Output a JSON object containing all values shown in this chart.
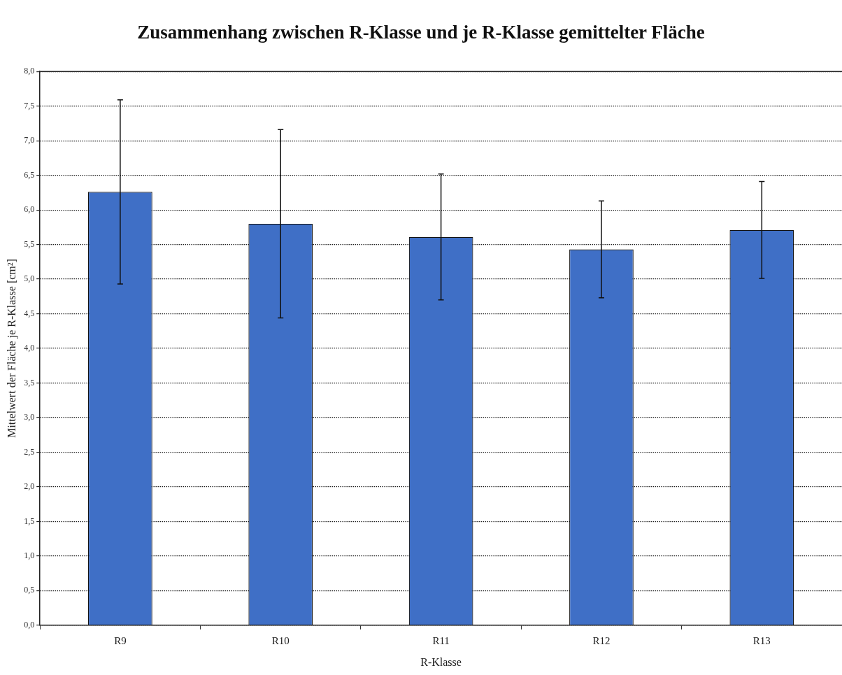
{
  "chart_data": {
    "type": "bar",
    "title": "Zusammenhang zwischen R-Klasse und je R-Klasse gemittelter Fläche",
    "xlabel": "R-Klasse",
    "ylabel": "Mittelwert der Fläche je R-Klasse [cm²]",
    "categories": [
      "R9",
      "R10",
      "R11",
      "R12",
      "R13"
    ],
    "values": [
      6.26,
      5.8,
      5.61,
      5.43,
      5.71
    ],
    "errors": [
      1.33,
      1.36,
      0.91,
      0.7,
      0.7
    ],
    "color": "#3f6fc6",
    "ylim": [
      0,
      8
    ],
    "yticks": [
      {
        "value": 0,
        "label": "0,0"
      },
      {
        "value": 0.5,
        "label": "0,5"
      },
      {
        "value": 1,
        "label": "1,0"
      },
      {
        "value": 1.5,
        "label": "1,5"
      },
      {
        "value": 2,
        "label": "2,0"
      },
      {
        "value": 2.5,
        "label": "2,5"
      },
      {
        "value": 3,
        "label": "3,0"
      },
      {
        "value": 3.5,
        "label": "3,5"
      },
      {
        "value": 4,
        "label": "4,0"
      },
      {
        "value": 4.5,
        "label": "4,5"
      },
      {
        "value": 5,
        "label": "5,0"
      },
      {
        "value": 5.5,
        "label": "5,5"
      },
      {
        "value": 6,
        "label": "6,0"
      },
      {
        "value": 6.5,
        "label": "6,5"
      },
      {
        "value": 7,
        "label": "7,0"
      },
      {
        "value": 7.5,
        "label": "7,5"
      },
      {
        "value": 8,
        "label": "8,0"
      }
    ],
    "grid": "y",
    "legend": false
  }
}
